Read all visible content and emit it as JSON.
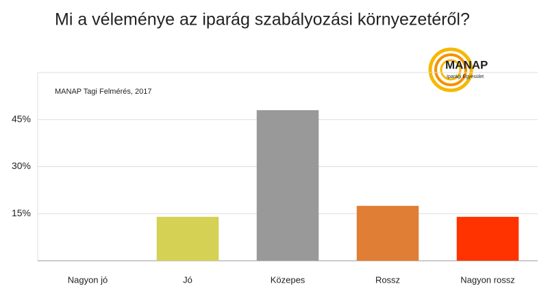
{
  "chart_data": {
    "type": "bar",
    "title": "Mi a véleménye az iparág szabályozási környezetéről?",
    "subtitle": "MANAP Tagi Felmérés, 2017",
    "logo": {
      "name": "MANAP",
      "tagline": "Iparági Egyesület"
    },
    "categories": [
      "Nagyon jó",
      "Jó",
      "Közepes",
      "Rossz",
      "Nagyon rossz"
    ],
    "values": [
      0,
      14,
      48,
      17.5,
      14
    ],
    "colors": [
      null,
      "#d4d155",
      "#999999",
      "#e07e35",
      "#ff3300"
    ],
    "ylim": [
      0,
      60
    ],
    "yticks": [
      {
        "value": 15,
        "label": "15%"
      },
      {
        "value": 30,
        "label": "30%"
      },
      {
        "value": 45,
        "label": "45%"
      }
    ],
    "grid": true
  }
}
